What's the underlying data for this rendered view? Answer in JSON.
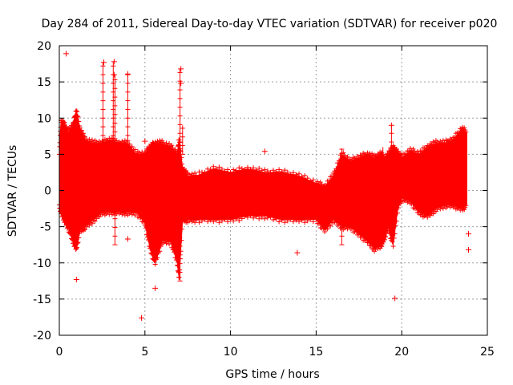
{
  "chart_data": {
    "type": "scatter",
    "title": "Day 284 of 2011, Sidereal Day-to-day VTEC variation (SDTVAR) for receiver p020",
    "xlabel": "GPS time / hours",
    "ylabel": "SDTVAR / TECUs",
    "xlim": [
      0,
      25
    ],
    "ylim": [
      -20,
      20
    ],
    "xticks": [
      0,
      5,
      10,
      15,
      20,
      25
    ],
    "yticks": [
      -20,
      -15,
      -10,
      -5,
      0,
      5,
      10,
      15,
      20
    ],
    "grid": true,
    "marker": "+",
    "color": "#ff0000",
    "series": [
      {
        "name": "SDTVAR",
        "envelope": {
          "x": [
            0.0,
            0.1,
            0.3,
            0.5,
            0.8,
            1.0,
            1.2,
            1.5,
            2.0,
            2.5,
            3.0,
            3.5,
            4.0,
            4.5,
            5.0,
            5.3,
            5.6,
            6.0,
            6.5,
            6.9,
            7.0,
            7.2,
            7.5,
            8.0,
            9.0,
            10.0,
            11.0,
            12.0,
            13.0,
            14.0,
            15.0,
            15.5,
            16.0,
            16.5,
            17.0,
            17.5,
            18.0,
            18.4,
            18.8,
            19.0,
            19.2,
            19.5,
            19.8,
            20.0,
            20.5,
            21.0,
            21.5,
            22.0,
            22.5,
            23.0,
            23.5,
            23.8
          ],
          "upper": [
            5.0,
            9.5,
            9.0,
            8.0,
            9.0,
            11.0,
            8.5,
            7.0,
            6.5,
            6.5,
            7.0,
            6.5,
            6.5,
            5.0,
            5.0,
            6.0,
            6.5,
            6.5,
            6.0,
            5.0,
            7.0,
            3.0,
            2.0,
            2.0,
            3.0,
            2.5,
            3.0,
            2.5,
            2.5,
            2.0,
            1.0,
            0.5,
            2.0,
            5.0,
            4.0,
            4.5,
            5.0,
            4.5,
            5.0,
            4.0,
            5.0,
            6.0,
            5.0,
            4.5,
            5.5,
            5.0,
            6.0,
            6.5,
            6.5,
            7.0,
            8.5,
            8.0
          ],
          "lower": [
            -2.0,
            -3.0,
            -4.0,
            -5.0,
            -7.0,
            -8.0,
            -5.5,
            -5.0,
            -4.0,
            -3.0,
            -3.0,
            -3.0,
            -3.0,
            -3.0,
            -4.5,
            -8.0,
            -10.0,
            -7.0,
            -7.0,
            -10.0,
            -12.0,
            -4.0,
            -4.0,
            -4.0,
            -4.0,
            -4.0,
            -3.5,
            -3.5,
            -4.0,
            -4.0,
            -4.0,
            -5.5,
            -4.0,
            -5.0,
            -5.0,
            -6.0,
            -7.0,
            -8.0,
            -7.5,
            -6.5,
            -5.0,
            -7.5,
            -2.0,
            -1.0,
            -1.5,
            -3.0,
            -3.5,
            -2.5,
            -2.0,
            -2.0,
            -2.5,
            -2.0
          ]
        },
        "outliers": [
          {
            "x": 0.4,
            "y": 18.9
          },
          {
            "x": 1.0,
            "y": -12.3
          },
          {
            "x": 2.6,
            "y": 17.7
          },
          {
            "x": 3.2,
            "y": 17.8
          },
          {
            "x": 3.2,
            "y": 16.0
          },
          {
            "x": 4.0,
            "y": 16.1
          },
          {
            "x": 4.0,
            "y": -6.7
          },
          {
            "x": 4.8,
            "y": -17.6
          },
          {
            "x": 5.0,
            "y": 6.8
          },
          {
            "x": 5.6,
            "y": -13.5
          },
          {
            "x": 7.1,
            "y": 16.8
          },
          {
            "x": 7.1,
            "y": 14.8
          },
          {
            "x": 12.0,
            "y": 5.4
          },
          {
            "x": 13.9,
            "y": -8.6
          },
          {
            "x": 19.4,
            "y": 9.0
          },
          {
            "x": 19.6,
            "y": -14.9
          },
          {
            "x": 23.9,
            "y": -6.0
          },
          {
            "x": 23.9,
            "y": -8.2
          }
        ],
        "spikes": [
          {
            "x": 2.55,
            "from": 4.0,
            "to": 17.7
          },
          {
            "x": 3.15,
            "from": 4.0,
            "to": 17.8
          },
          {
            "x": 3.25,
            "from": -7.5,
            "to": 16.0
          },
          {
            "x": 4.0,
            "from": 4.0,
            "to": 16.1
          },
          {
            "x": 7.05,
            "from": -12.5,
            "to": 16.8
          },
          {
            "x": 7.2,
            "from": 5.0,
            "to": 9.0
          },
          {
            "x": 19.4,
            "from": -6.5,
            "to": 9.0
          },
          {
            "x": 16.5,
            "from": -7.5,
            "to": 5.8
          },
          {
            "x": 18.9,
            "from": -7.0,
            "to": 6.0
          }
        ]
      }
    ]
  }
}
